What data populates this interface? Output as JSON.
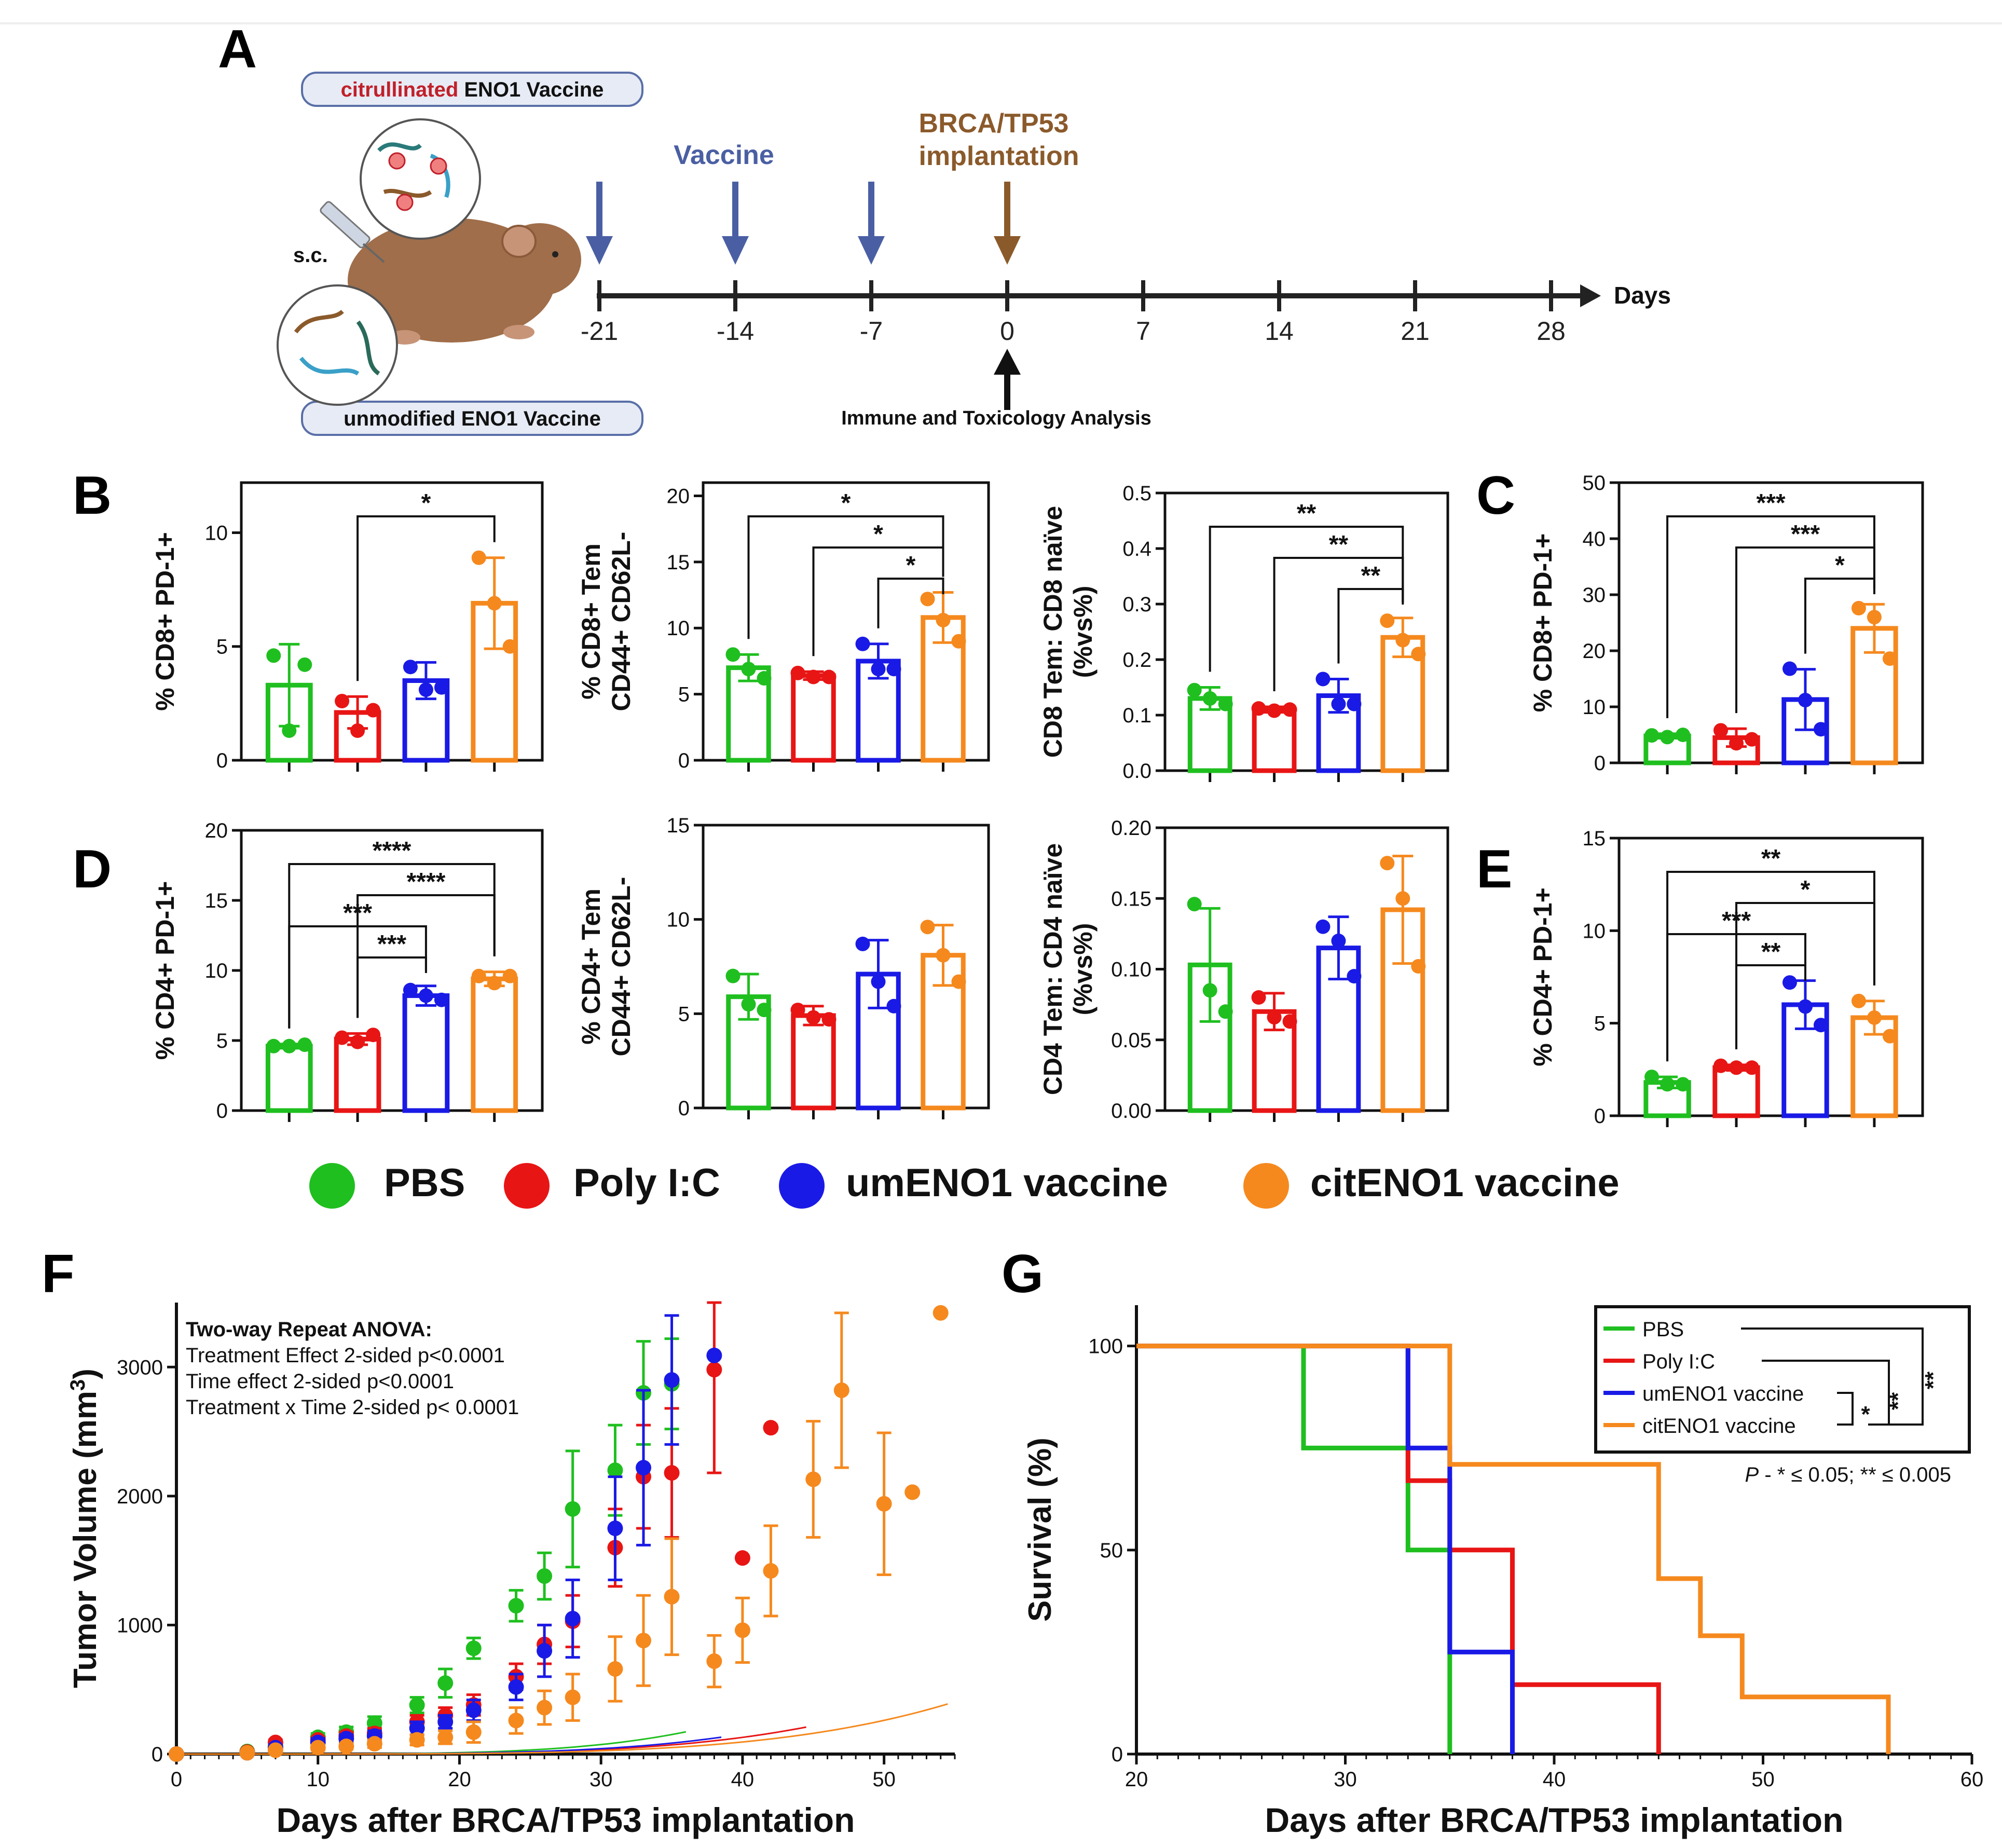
{
  "colors": {
    "PBS": "#1fbf1f",
    "Poly I:C": "#e81515",
    "umENO1 vaccine": "#1a1ae6",
    "citENO1 vaccine": "#f5891e",
    "vaccine_arrow": "#4a5fa3",
    "implant_arrow": "#8b5a2b",
    "cit_text": "#c0202a"
  },
  "panelA": {
    "letter": "A",
    "cit_label_red": "citrullinated",
    "cit_label_rest": " ENO1 Vaccine",
    "unmod_label": "unmodified ENO1 Vaccine",
    "sc": "s.c.",
    "vaccine": "Vaccine",
    "implant_line1": "BRCA/TP53",
    "implant_line2": "implantation",
    "days_label": "Days",
    "ticks": [
      "-21",
      "-14",
      "-7",
      "0",
      "7",
      "14",
      "21",
      "28"
    ],
    "analysis": "Immune and Toxicology Analysis"
  },
  "letters": {
    "B": "B",
    "C": "C",
    "D": "D",
    "E": "E",
    "F": "F",
    "G": "G"
  },
  "legend": [
    "PBS",
    "Poly I:C",
    "umENO1 vaccine",
    "citENO1 vaccine"
  ],
  "chart_data": [
    {
      "id": "B1",
      "type": "bar",
      "ylabel": [
        "% CD8+ PD-1+"
      ],
      "ylim": [
        0,
        12.2
      ],
      "yticks": [
        "0",
        "5",
        "10"
      ],
      "ytick_vals": [
        0,
        5,
        10
      ],
      "categories": [
        "PBS",
        "Poly I:C",
        "umENO1 vaccine",
        "citENO1 vaccine"
      ],
      "values": [
        3.3,
        2.1,
        3.5,
        6.9
      ],
      "errors": [
        1.8,
        0.7,
        0.8,
        2.0
      ],
      "points": [
        [
          4.6,
          1.3,
          4.2
        ],
        [
          2.6,
          1.3,
          2.2
        ],
        [
          4.1,
          3.1,
          3.2
        ],
        [
          8.9,
          6.9,
          5.0
        ]
      ],
      "sig": [
        {
          "a": 2,
          "b": 4,
          "label": "*"
        }
      ]
    },
    {
      "id": "B2",
      "type": "bar",
      "ylabel": [
        "% CD8+ Tem",
        "CD44+ CD62L-"
      ],
      "ylim": [
        0,
        21
      ],
      "yticks": [
        "0",
        "5",
        "10",
        "15",
        "20"
      ],
      "ytick_vals": [
        0,
        5,
        10,
        15,
        20
      ],
      "categories": [
        "PBS",
        "Poly I:C",
        "umENO1 vaccine",
        "citENO1 vaccine"
      ],
      "values": [
        7.0,
        6.4,
        7.5,
        10.8
      ],
      "errors": [
        1.0,
        0.3,
        1.3,
        1.9
      ],
      "points": [
        [
          8.0,
          6.9,
          6.2
        ],
        [
          6.6,
          6.3,
          6.3
        ],
        [
          8.8,
          6.9,
          6.9
        ],
        [
          12.2,
          10.6,
          9.0
        ]
      ],
      "sig": [
        {
          "a": 1,
          "b": 4,
          "label": "*"
        },
        {
          "a": 2,
          "b": 4,
          "label": "*"
        },
        {
          "a": 3,
          "b": 4,
          "label": "*"
        }
      ]
    },
    {
      "id": "B3",
      "type": "bar",
      "ylabel": [
        "CD8 Tem: CD8 naïve",
        "(%vs%)"
      ],
      "ylim": [
        0,
        0.5
      ],
      "yticks": [
        "0.0",
        "0.1",
        "0.2",
        "0.3",
        "0.4",
        "0.5"
      ],
      "ytick_vals": [
        0,
        0.1,
        0.2,
        0.3,
        0.4,
        0.5
      ],
      "categories": [
        "PBS",
        "Poly I:C",
        "umENO1 vaccine",
        "citENO1 vaccine"
      ],
      "values": [
        0.13,
        0.11,
        0.135,
        0.24
      ],
      "errors": [
        0.02,
        0.005,
        0.03,
        0.035
      ],
      "points": [
        [
          0.145,
          0.13,
          0.12
        ],
        [
          0.112,
          0.108,
          0.11
        ],
        [
          0.165,
          0.12,
          0.12
        ],
        [
          0.27,
          0.235,
          0.21
        ]
      ],
      "sig": [
        {
          "a": 1,
          "b": 4,
          "label": "**"
        },
        {
          "a": 2,
          "b": 4,
          "label": "**"
        },
        {
          "a": 3,
          "b": 4,
          "label": "**"
        }
      ]
    },
    {
      "id": "C",
      "type": "bar",
      "ylabel": [
        "% CD8+ PD-1+"
      ],
      "ylim": [
        0,
        50
      ],
      "yticks": [
        "0",
        "10",
        "20",
        "30",
        "40",
        "50"
      ],
      "ytick_vals": [
        0,
        10,
        20,
        30,
        40,
        50
      ],
      "categories": [
        "PBS",
        "Poly I:C",
        "umENO1 vaccine",
        "citENO1 vaccine"
      ],
      "values": [
        4.8,
        4.5,
        11.3,
        24.0
      ],
      "errors": [
        0.4,
        1.6,
        5.4,
        4.3
      ],
      "points": [
        [
          4.9,
          4.6,
          5.0
        ],
        [
          5.8,
          3.5,
          4.2
        ],
        [
          16.8,
          11.2,
          6.0
        ],
        [
          27.6,
          26.0,
          18.6
        ]
      ],
      "sig": [
        {
          "a": 1,
          "b": 4,
          "label": "***"
        },
        {
          "a": 2,
          "b": 4,
          "label": "***"
        },
        {
          "a": 3,
          "b": 4,
          "label": "*"
        }
      ]
    },
    {
      "id": "D1",
      "type": "bar",
      "ylabel": [
        "% CD4+ PD-1+"
      ],
      "ylim": [
        0,
        20
      ],
      "yticks": [
        "0",
        "5",
        "10",
        "15",
        "20"
      ],
      "ytick_vals": [
        0,
        5,
        10,
        15,
        20
      ],
      "categories": [
        "PBS",
        "Poly I:C",
        "umENO1 vaccine",
        "citENO1 vaccine"
      ],
      "values": [
        4.6,
        5.1,
        8.2,
        9.4
      ],
      "errors": [
        0.15,
        0.4,
        0.7,
        0.5
      ],
      "points": [
        [
          4.6,
          4.6,
          4.7
        ],
        [
          5.2,
          4.9,
          5.4
        ],
        [
          8.6,
          8.2,
          7.9
        ],
        [
          9.6,
          9.1,
          9.6
        ]
      ],
      "sig": [
        {
          "a": 1,
          "b": 4,
          "label": "****"
        },
        {
          "a": 2,
          "b": 4,
          "label": "****"
        },
        {
          "a": 1,
          "b": 3,
          "label": "***"
        },
        {
          "a": 2,
          "b": 3,
          "label": "***"
        }
      ]
    },
    {
      "id": "D2",
      "type": "bar",
      "ylabel": [
        "% CD4+ Tem",
        "CD44+ CD62L-"
      ],
      "ylim": [
        0,
        15
      ],
      "yticks": [
        "0",
        "5",
        "10",
        "15"
      ],
      "ytick_vals": [
        0,
        5,
        10,
        15
      ],
      "categories": [
        "PBS",
        "Poly I:C",
        "umENO1 vaccine",
        "citENO1 vaccine"
      ],
      "values": [
        5.9,
        4.9,
        7.1,
        8.1
      ],
      "errors": [
        1.2,
        0.5,
        1.8,
        1.6
      ],
      "points": [
        [
          7.0,
          5.5,
          5.2
        ],
        [
          5.2,
          4.8,
          4.7
        ],
        [
          8.7,
          6.7,
          5.4
        ],
        [
          9.6,
          8.1,
          6.7
        ]
      ],
      "sig": []
    },
    {
      "id": "D3",
      "type": "bar",
      "ylabel": [
        "CD4 Tem: CD4 naïve",
        "(%vs%)"
      ],
      "ylim": [
        0,
        0.2
      ],
      "yticks": [
        "0.00",
        "0.05",
        "0.10",
        "0.15",
        "0.20"
      ],
      "ytick_vals": [
        0,
        0.05,
        0.1,
        0.15,
        0.2
      ],
      "categories": [
        "PBS",
        "Poly I:C",
        "umENO1 vaccine",
        "citENO1 vaccine"
      ],
      "values": [
        0.103,
        0.07,
        0.115,
        0.142
      ],
      "errors": [
        0.04,
        0.013,
        0.022,
        0.038
      ],
      "points": [
        [
          0.146,
          0.085,
          0.07
        ],
        [
          0.08,
          0.066,
          0.063
        ],
        [
          0.13,
          0.12,
          0.095
        ],
        [
          0.175,
          0.15,
          0.102
        ]
      ],
      "sig": []
    },
    {
      "id": "E",
      "type": "bar",
      "ylabel": [
        "% CD4+ PD-1+"
      ],
      "ylim": [
        0,
        15
      ],
      "yticks": [
        "0",
        "5",
        "10",
        "15"
      ],
      "ytick_vals": [
        0,
        5,
        10,
        15
      ],
      "categories": [
        "PBS",
        "Poly I:C",
        "umENO1 vaccine",
        "citENO1 vaccine"
      ],
      "values": [
        1.8,
        2.6,
        6.0,
        5.3
      ],
      "errors": [
        0.3,
        0.15,
        1.3,
        0.9
      ],
      "points": [
        [
          2.1,
          1.7,
          1.7
        ],
        [
          2.7,
          2.6,
          2.6
        ],
        [
          7.2,
          5.9,
          4.9
        ],
        [
          6.2,
          5.3,
          4.3
        ]
      ],
      "sig": [
        {
          "a": 1,
          "b": 4,
          "label": "**"
        },
        {
          "a": 2,
          "b": 4,
          "label": "*"
        },
        {
          "a": 1,
          "b": 3,
          "label": "***"
        },
        {
          "a": 2,
          "b": 3,
          "label": "**"
        }
      ]
    },
    {
      "id": "F",
      "type": "scatter",
      "title_lines": [
        "Two-way Repeat ANOVA:",
        "Treatment Effect 2-sided p<0.0001",
        "Time effect 2-sided p<0.0001",
        "Treatment x Time 2-sided p< 0.0001"
      ],
      "xlabel": "Days after BRCA/TP53 implantation",
      "ylabel": "Tumor Volume (mm",
      "ylabel_sup": "3",
      "ylabel_end": ")",
      "xlim": [
        0,
        55
      ],
      "ylim": [
        0,
        3500
      ],
      "xticks": [
        "0",
        "10",
        "20",
        "30",
        "40",
        "50"
      ],
      "xtick_vals": [
        0,
        10,
        20,
        30,
        40,
        50
      ],
      "yticks": [
        "0",
        "1000",
        "2000",
        "3000"
      ],
      "ytick_vals": [
        0,
        1000,
        2000,
        3000
      ],
      "series": [
        {
          "name": "PBS",
          "x": [
            0,
            5,
            7,
            10,
            12,
            14,
            17,
            19,
            21,
            24,
            26,
            28,
            31,
            33,
            35
          ],
          "y": [
            0,
            20,
            60,
            130,
            170,
            240,
            380,
            550,
            820,
            1150,
            1380,
            1900,
            2200,
            2800,
            2870
          ],
          "err": [
            0,
            10,
            20,
            30,
            40,
            50,
            60,
            110,
            80,
            120,
            180,
            450,
            350,
            400,
            350
          ],
          "fit": [
            1e-05,
            0.0,
            3.65,
            0
          ]
        },
        {
          "name": "Poly I:C",
          "x": [
            0,
            5,
            7,
            10,
            12,
            14,
            17,
            19,
            21,
            24,
            26,
            28,
            31,
            33,
            35,
            38,
            40,
            42
          ],
          "y": [
            0,
            15,
            90,
            110,
            140,
            160,
            250,
            300,
            380,
            600,
            850,
            1030,
            1600,
            2150,
            2180,
            2980,
            1520,
            2530
          ],
          "err": [
            0,
            10,
            20,
            20,
            30,
            40,
            50,
            60,
            80,
            100,
            150,
            200,
            300,
            400,
            500,
            800,
            0,
            0
          ],
          "fit": [
            8e-06,
            0,
            3.5,
            0
          ]
        },
        {
          "name": "umENO1 vaccine",
          "x": [
            0,
            5,
            7,
            10,
            12,
            14,
            17,
            19,
            21,
            24,
            26,
            28,
            31,
            33,
            35,
            38
          ],
          "y": [
            0,
            10,
            50,
            90,
            120,
            140,
            200,
            250,
            340,
            520,
            800,
            1050,
            1750,
            2220,
            2900,
            3090
          ],
          "err": [
            0,
            5,
            20,
            30,
            30,
            40,
            50,
            50,
            80,
            100,
            200,
            300,
            400,
            600,
            500,
            0
          ],
          "fit": [
            8e-06,
            0,
            3.55,
            0
          ]
        },
        {
          "name": "citENO1 vaccine",
          "x": [
            0,
            5,
            7,
            10,
            12,
            14,
            17,
            19,
            21,
            24,
            26,
            28,
            31,
            33,
            35,
            38,
            40,
            42,
            45,
            47,
            50,
            52,
            54
          ],
          "y": [
            0,
            10,
            30,
            50,
            60,
            80,
            110,
            130,
            170,
            260,
            360,
            440,
            660,
            880,
            1220,
            720,
            960,
            1420,
            2130,
            2820,
            1940,
            2030,
            3420
          ],
          "err": [
            0,
            5,
            10,
            20,
            20,
            30,
            40,
            50,
            80,
            100,
            130,
            180,
            250,
            350,
            450,
            200,
            250,
            350,
            450,
            600,
            550,
            0,
            0
          ],
          "fit": [
            4e-06,
            0,
            3.6,
            0
          ]
        }
      ]
    },
    {
      "id": "G",
      "type": "line",
      "xlabel": "Days after BRCA/TP53 implantation",
      "ylabel": "Survival (%)",
      "xlim": [
        20,
        60
      ],
      "ylim": [
        0,
        110
      ],
      "xticks": [
        "20",
        "30",
        "40",
        "50",
        "60"
      ],
      "xtick_vals": [
        20,
        30,
        40,
        50,
        60
      ],
      "yticks": [
        "0",
        "50",
        "100"
      ],
      "ytick_vals": [
        0,
        50,
        100
      ],
      "pvalue_prefix": "P",
      "pvalue_text": " - * ≤ 0.05; ** ≤ 0.005",
      "sig_labels": [
        "*",
        "**",
        "**"
      ],
      "series": [
        {
          "name": "PBS",
          "x": [
            20,
            28,
            28,
            33,
            33,
            35,
            35
          ],
          "y": [
            100,
            100,
            75,
            75,
            50,
            50,
            0
          ]
        },
        {
          "name": "Poly I:C",
          "x": [
            20,
            33,
            33,
            35,
            35,
            38,
            38,
            45,
            45
          ],
          "y": [
            100,
            100,
            67,
            67,
            50,
            50,
            17,
            17,
            0
          ]
        },
        {
          "name": "umENO1 vaccine",
          "x": [
            20,
            33,
            33,
            35,
            35,
            38,
            38
          ],
          "y": [
            100,
            100,
            75,
            75,
            25,
            25,
            0
          ]
        },
        {
          "name": "citENO1 vaccine",
          "x": [
            20,
            35,
            35,
            45,
            45,
            47,
            47,
            49,
            49,
            56,
            56
          ],
          "y": [
            100,
            100,
            71,
            71,
            43,
            43,
            29,
            29,
            14,
            14,
            0
          ]
        }
      ]
    }
  ]
}
